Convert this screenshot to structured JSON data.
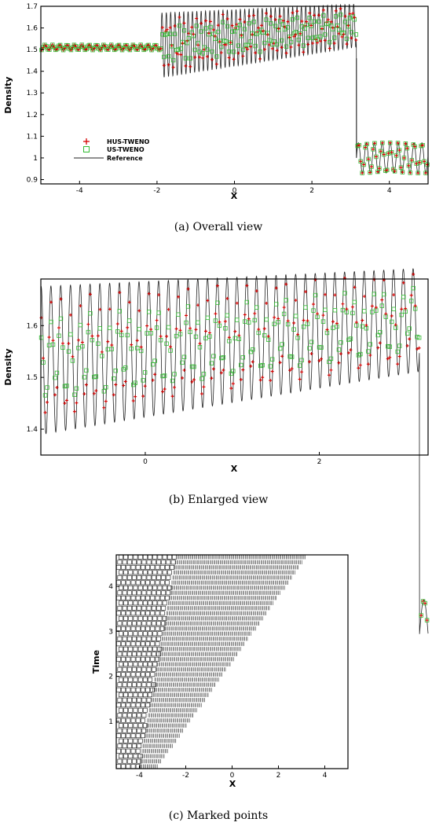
{
  "colors": {
    "hus": "#d40000",
    "us": "#33bb33",
    "reference": "#222222",
    "frame": "#000000"
  },
  "chart_data": [
    {
      "type": "line",
      "caption": "(a) Overall view",
      "xlabel": "X",
      "ylabel": "Density",
      "xlim": [
        -5,
        5
      ],
      "ylim": [
        0.88,
        1.7
      ],
      "xticks": [
        "-4",
        "-2",
        "0",
        "2",
        "4"
      ],
      "yticks": [
        "0.9",
        "1",
        "1.1",
        "1.2",
        "1.3",
        "1.4",
        "1.5",
        "1.6",
        "1.7"
      ],
      "legend": {
        "placement": "left-middle",
        "entries": [
          "HUS-TWENO",
          "US-TWENO",
          "Reference"
        ]
      },
      "series": [
        {
          "name": "HUS-TWENO",
          "marker": "plus"
        },
        {
          "name": "US-TWENO",
          "marker": "square"
        },
        {
          "name": "Reference",
          "marker": "line"
        }
      ],
      "features": {
        "left_state_density": 1.51,
        "wave_start_x": -1.9,
        "shock_x": 3.15,
        "right_state_density": 1.0,
        "oscillation_band": [
          1.35,
          1.68
        ]
      }
    },
    {
      "type": "line",
      "caption": "(b) Enlarged view",
      "xlabel": "X",
      "ylabel": "Density",
      "xlim": [
        -1.2,
        3.25
      ],
      "ylim": [
        1.35,
        1.69
      ],
      "xticks": [
        "0",
        "2"
      ],
      "yticks": [
        "1.4",
        "1.5",
        "1.6"
      ],
      "series": [
        {
          "name": "HUS-TWENO",
          "marker": "plus"
        },
        {
          "name": "US-TWENO",
          "marker": "square"
        },
        {
          "name": "Reference",
          "marker": "line"
        }
      ]
    },
    {
      "type": "scatter",
      "caption": "(c) Marked points",
      "xlabel": "X",
      "ylabel": "Time",
      "xlim": [
        -5,
        5
      ],
      "ylim": [
        -0.05,
        4.7
      ],
      "xticks": [
        "-4",
        "-2",
        "0",
        "2",
        "4"
      ],
      "yticks": [
        "1",
        "2",
        "3",
        "4"
      ],
      "marked_rows": {
        "time_start": 0.0,
        "time_end": 4.65,
        "rows": 42,
        "left_x": -4.9,
        "sparse_end_x_at_t0": -4.0,
        "sparse_end_x_at_tmax": -2.4,
        "right_x_at_t0": -3.2,
        "right_x_at_tmax": 3.2
      }
    }
  ]
}
